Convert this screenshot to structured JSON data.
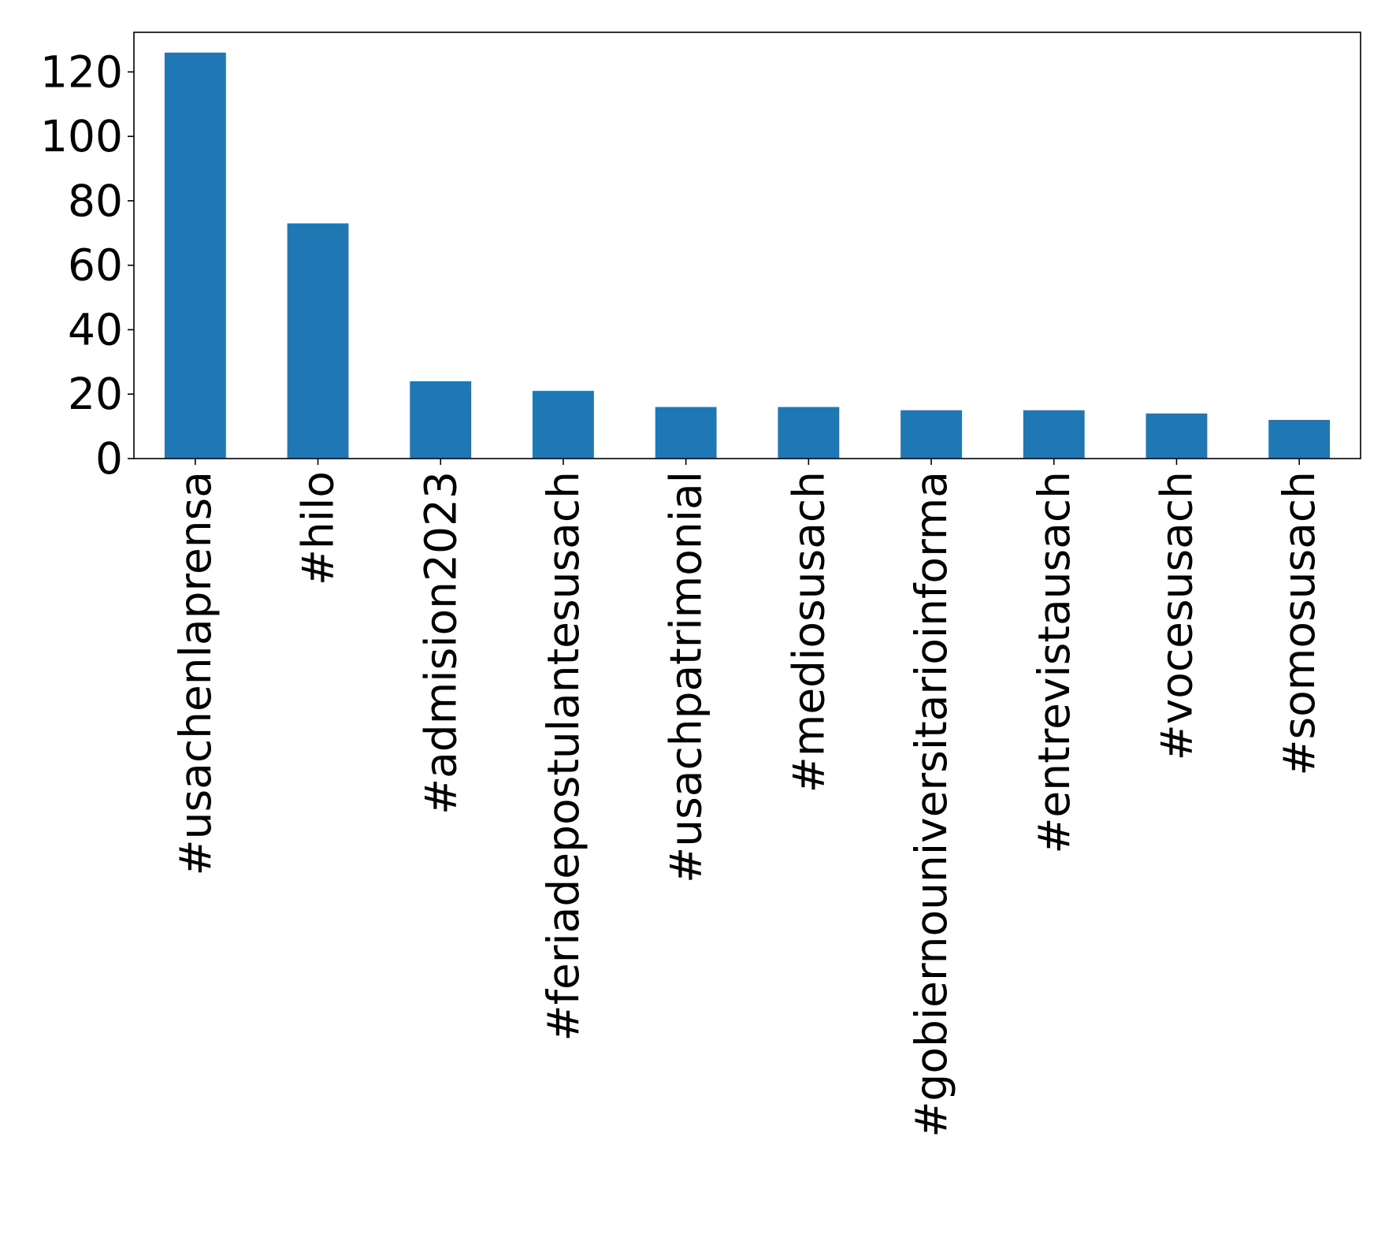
{
  "chart_data": {
    "type": "bar",
    "title": "",
    "xlabel": "",
    "ylabel": "",
    "categories": [
      "#usachenlaprensa",
      "#hilo",
      "#admision2023",
      "#feriadepostulantesusach",
      "#usachpatrimonial",
      "#mediosusach",
      "#gobiernouniversitarioinforma",
      "#entrevistausach",
      "#vocesusach",
      "#somosusach"
    ],
    "values": [
      126,
      73,
      24,
      21,
      16,
      16,
      15,
      15,
      14,
      12
    ],
    "ylim": [
      0,
      132.3
    ],
    "yticks": [
      0,
      20,
      40,
      60,
      80,
      100,
      120
    ],
    "ytick_labels": [
      "0",
      "20",
      "40",
      "60",
      "80",
      "100",
      "120"
    ],
    "bar_color": "#1f77b4",
    "grid": false,
    "legend": "none"
  }
}
